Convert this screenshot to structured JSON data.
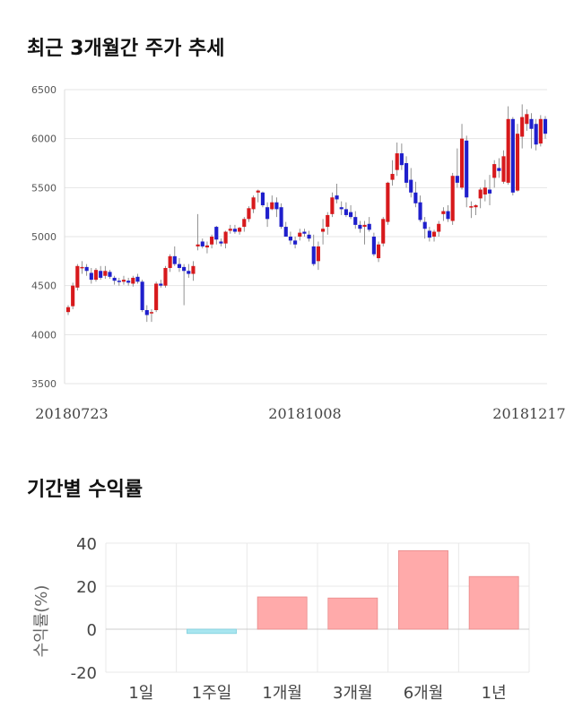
{
  "chart_data": [
    {
      "type": "candlestick",
      "title": "최근 3개월간 주가 추세",
      "ylim": [
        3500,
        6500
      ],
      "yticks": [
        3500,
        4000,
        4500,
        5000,
        5500,
        6000,
        6500
      ],
      "x_labels": [
        "20180723",
        "20181008",
        "20181217"
      ],
      "grid": true,
      "up_color": "#d7191c",
      "down_color": "#1f1fcc",
      "candles": [
        [
          4230,
          4300,
          4200,
          4280
        ],
        [
          4290,
          4530,
          4260,
          4500
        ],
        [
          4480,
          4720,
          4450,
          4700
        ],
        [
          4680,
          4750,
          4620,
          4690
        ],
        [
          4690,
          4720,
          4600,
          4650
        ],
        [
          4630,
          4680,
          4520,
          4560
        ],
        [
          4560,
          4680,
          4540,
          4660
        ],
        [
          4650,
          4700,
          4560,
          4580
        ],
        [
          4600,
          4700,
          4570,
          4650
        ],
        [
          4640,
          4660,
          4570,
          4590
        ],
        [
          4580,
          4600,
          4510,
          4550
        ],
        [
          4550,
          4580,
          4500,
          4540
        ],
        [
          4540,
          4600,
          4510,
          4560
        ],
        [
          4550,
          4580,
          4500,
          4530
        ],
        [
          4520,
          4600,
          4490,
          4580
        ],
        [
          4590,
          4620,
          4520,
          4540
        ],
        [
          4540,
          4560,
          4230,
          4250
        ],
        [
          4250,
          4300,
          4130,
          4200
        ],
        [
          4230,
          4260,
          4130,
          4230
        ],
        [
          4250,
          4540,
          4230,
          4520
        ],
        [
          4520,
          4560,
          4480,
          4500
        ],
        [
          4500,
          4700,
          4480,
          4680
        ],
        [
          4680,
          4820,
          4640,
          4800
        ],
        [
          4800,
          4900,
          4700,
          4720
        ],
        [
          4720,
          4780,
          4640,
          4680
        ],
        [
          4690,
          4720,
          4300,
          4650
        ],
        [
          4650,
          4720,
          4580,
          4620
        ],
        [
          4620,
          4750,
          4550,
          4700
        ],
        [
          4900,
          5230,
          4860,
          4920
        ],
        [
          4950,
          4980,
          4880,
          4900
        ],
        [
          4890,
          4950,
          4830,
          4910
        ],
        [
          4920,
          5020,
          4880,
          5000
        ],
        [
          5100,
          5110,
          4920,
          4970
        ],
        [
          4950,
          4980,
          4900,
          4930
        ],
        [
          4930,
          5060,
          4880,
          5050
        ],
        [
          5060,
          5120,
          5030,
          5080
        ],
        [
          5080,
          5120,
          5030,
          5050
        ],
        [
          5050,
          5100,
          5020,
          5090
        ],
        [
          5100,
          5200,
          5050,
          5180
        ],
        [
          5180,
          5310,
          5150,
          5290
        ],
        [
          5280,
          5420,
          5240,
          5400
        ],
        [
          5450,
          5480,
          5350,
          5470
        ],
        [
          5450,
          5460,
          5300,
          5320
        ],
        [
          5300,
          5350,
          5100,
          5180
        ],
        [
          5280,
          5420,
          5270,
          5350
        ],
        [
          5350,
          5400,
          5200,
          5280
        ],
        [
          5300,
          5340,
          5080,
          5100
        ],
        [
          5100,
          5150,
          5000,
          5000
        ],
        [
          5000,
          5050,
          4920,
          4960
        ],
        [
          4960,
          5000,
          4880,
          4920
        ],
        [
          5000,
          5080,
          4960,
          5040
        ],
        [
          5050,
          5080,
          5000,
          5030
        ],
        [
          5020,
          5060,
          4950,
          4980
        ],
        [
          4900,
          5020,
          4700,
          4720
        ],
        [
          4750,
          4950,
          4660,
          4900
        ],
        [
          5050,
          5180,
          4920,
          5080
        ],
        [
          5100,
          5250,
          5020,
          5220
        ],
        [
          5230,
          5450,
          5200,
          5400
        ],
        [
          5420,
          5540,
          5340,
          5380
        ],
        [
          5300,
          5360,
          5220,
          5280
        ],
        [
          5280,
          5350,
          5200,
          5220
        ],
        [
          5250,
          5320,
          5180,
          5200
        ],
        [
          5200,
          5260,
          5080,
          5120
        ],
        [
          5120,
          5160,
          5040,
          5080
        ],
        [
          5100,
          5160,
          4920,
          5120
        ],
        [
          5130,
          5200,
          5050,
          5070
        ],
        [
          5000,
          5040,
          4800,
          4820
        ],
        [
          4780,
          4950,
          4740,
          4920
        ],
        [
          4930,
          5200,
          4900,
          5180
        ],
        [
          5150,
          5560,
          5120,
          5550
        ],
        [
          5580,
          5780,
          5520,
          5640
        ],
        [
          5680,
          5960,
          5620,
          5850
        ],
        [
          5850,
          5950,
          5680,
          5730
        ],
        [
          5750,
          5820,
          5500,
          5550
        ],
        [
          5580,
          5700,
          5400,
          5450
        ],
        [
          5450,
          5560,
          5300,
          5340
        ],
        [
          5350,
          5420,
          5150,
          5170
        ],
        [
          5150,
          5200,
          4980,
          5080
        ],
        [
          5060,
          5100,
          4950,
          4990
        ],
        [
          5000,
          5070,
          4950,
          5050
        ],
        [
          5050,
          5160,
          5000,
          5130
        ],
        [
          5230,
          5300,
          5160,
          5260
        ],
        [
          5260,
          5320,
          5150,
          5180
        ],
        [
          5160,
          5650,
          5120,
          5620
        ],
        [
          5620,
          5900,
          5500,
          5550
        ],
        [
          5500,
          6150,
          5480,
          6000
        ],
        [
          5980,
          6030,
          5300,
          5400
        ],
        [
          5300,
          5360,
          5190,
          5310
        ],
        [
          5300,
          5330,
          5220,
          5320
        ],
        [
          5390,
          5500,
          5290,
          5480
        ],
        [
          5430,
          5580,
          5360,
          5500
        ],
        [
          5480,
          5630,
          5320,
          5440
        ],
        [
          5600,
          5780,
          5500,
          5740
        ],
        [
          5700,
          5800,
          5600,
          5670
        ],
        [
          5560,
          5880,
          5540,
          5820
        ],
        [
          5550,
          6330,
          5530,
          6200
        ],
        [
          6200,
          6220,
          5420,
          5450
        ],
        [
          5470,
          6150,
          5460,
          6050
        ],
        [
          6020,
          6350,
          5900,
          6220
        ],
        [
          6150,
          6300,
          6080,
          6250
        ],
        [
          6200,
          6260,
          5900,
          6100
        ],
        [
          6150,
          6200,
          5880,
          5940
        ],
        [
          5950,
          6240,
          5920,
          6200
        ],
        [
          6200,
          6230,
          6000,
          6050
        ]
      ]
    },
    {
      "type": "bar",
      "title": "기간별 수익률",
      "ylabel": "수익률(%)",
      "categories": [
        "1일",
        "1주일",
        "1개월",
        "3개월",
        "6개월",
        "1년"
      ],
      "values": [
        0,
        -2,
        15,
        14.5,
        36.5,
        24.5
      ],
      "ylim": [
        -20,
        40
      ],
      "yticks": [
        -20,
        0,
        20,
        40
      ],
      "positive_color": "#ffaaaa",
      "negative_color": "#a8e6f0"
    }
  ]
}
